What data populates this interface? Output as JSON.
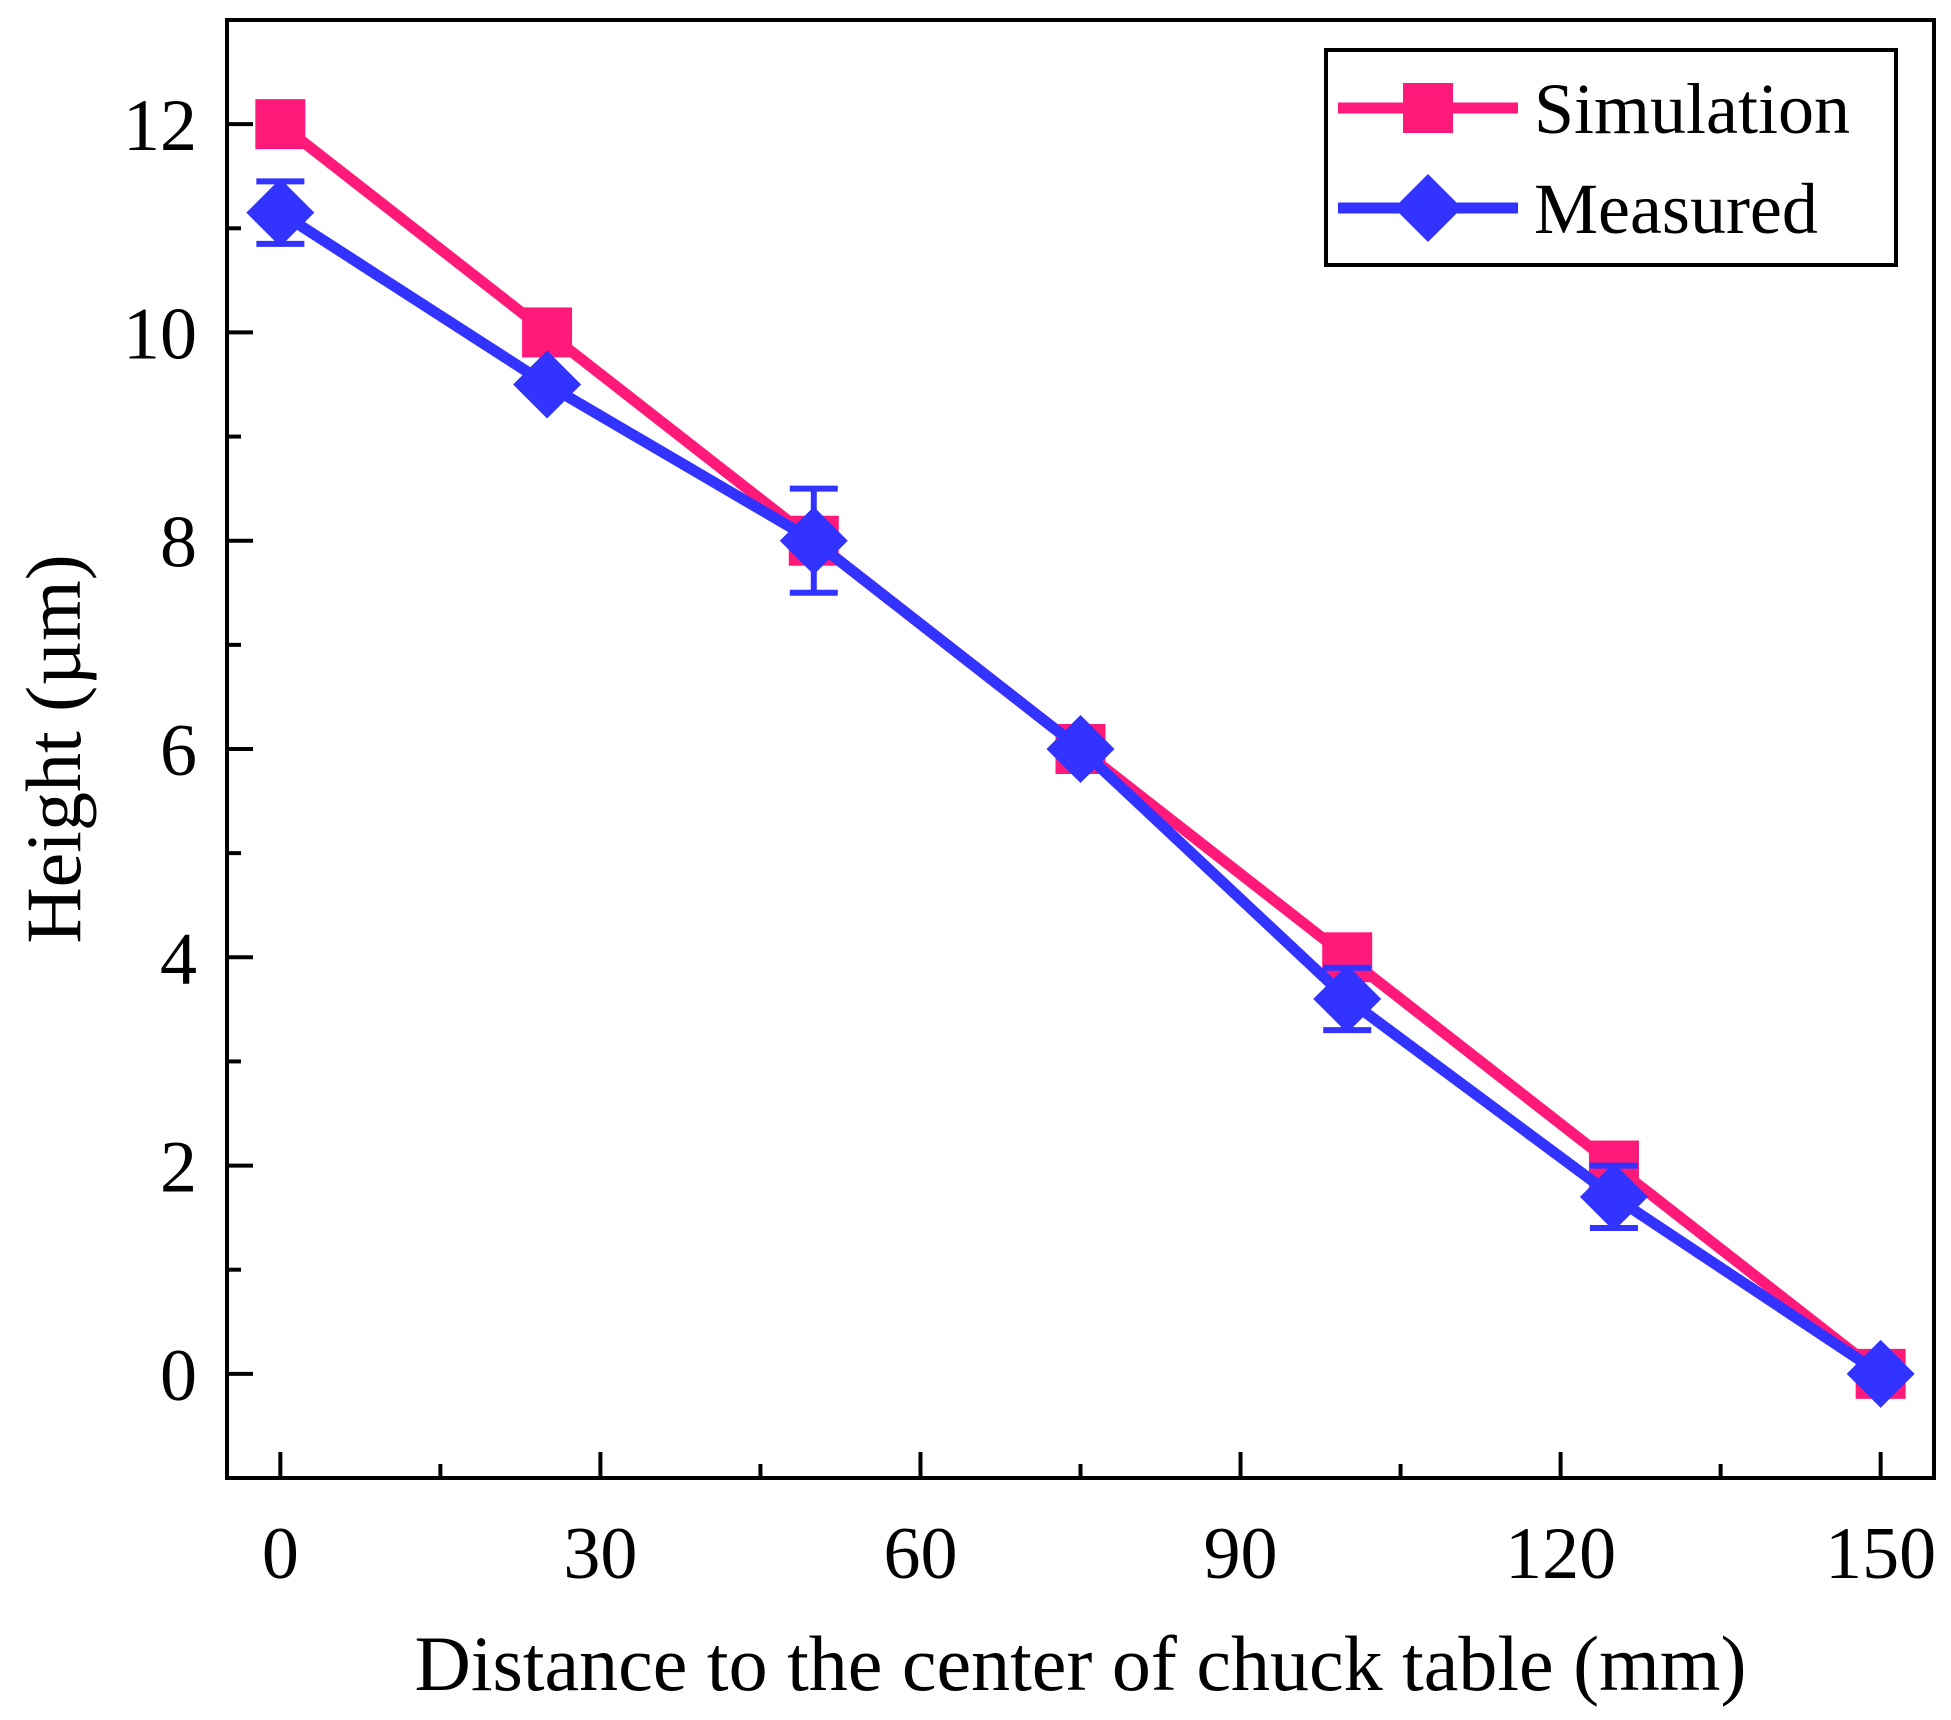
{
  "chart_data": {
    "type": "line",
    "title": "",
    "xlabel": "Distance to the center of chuck table (mm)",
    "ylabel": "Height (µm)",
    "xlim": [
      -5,
      155
    ],
    "ylim": [
      -1.0,
      13.0
    ],
    "x_ticks": [
      0,
      30,
      60,
      90,
      120,
      150
    ],
    "x_tick_labels": [
      "0",
      "30",
      "60",
      "90",
      "120",
      "150"
    ],
    "x_minor_ticks": [
      15,
      45,
      75,
      105,
      135
    ],
    "y_ticks": [
      0,
      2,
      4,
      6,
      8,
      10,
      12
    ],
    "y_tick_labels": [
      "0",
      "2",
      "4",
      "6",
      "8",
      "10",
      "12"
    ],
    "y_minor_ticks": [
      1,
      3,
      5,
      7,
      9,
      11
    ],
    "legend_position": "top-right",
    "series": [
      {
        "name": "Simulation",
        "color": "#ff1a7a",
        "marker": "square",
        "x": [
          0,
          25,
          50,
          75,
          100,
          125,
          150
        ],
        "values": [
          12.0,
          10.0,
          8.0,
          6.0,
          4.0,
          2.0,
          0.0
        ]
      },
      {
        "name": "Measured",
        "color": "#3333ff",
        "marker": "diamond",
        "x": [
          0,
          25,
          50,
          75,
          100,
          125,
          150
        ],
        "values": [
          11.15,
          9.5,
          8.0,
          6.0,
          3.6,
          1.7,
          0.0
        ],
        "errors": [
          0.3,
          0.0,
          0.5,
          0.0,
          0.3,
          0.3,
          0.0
        ]
      }
    ]
  }
}
